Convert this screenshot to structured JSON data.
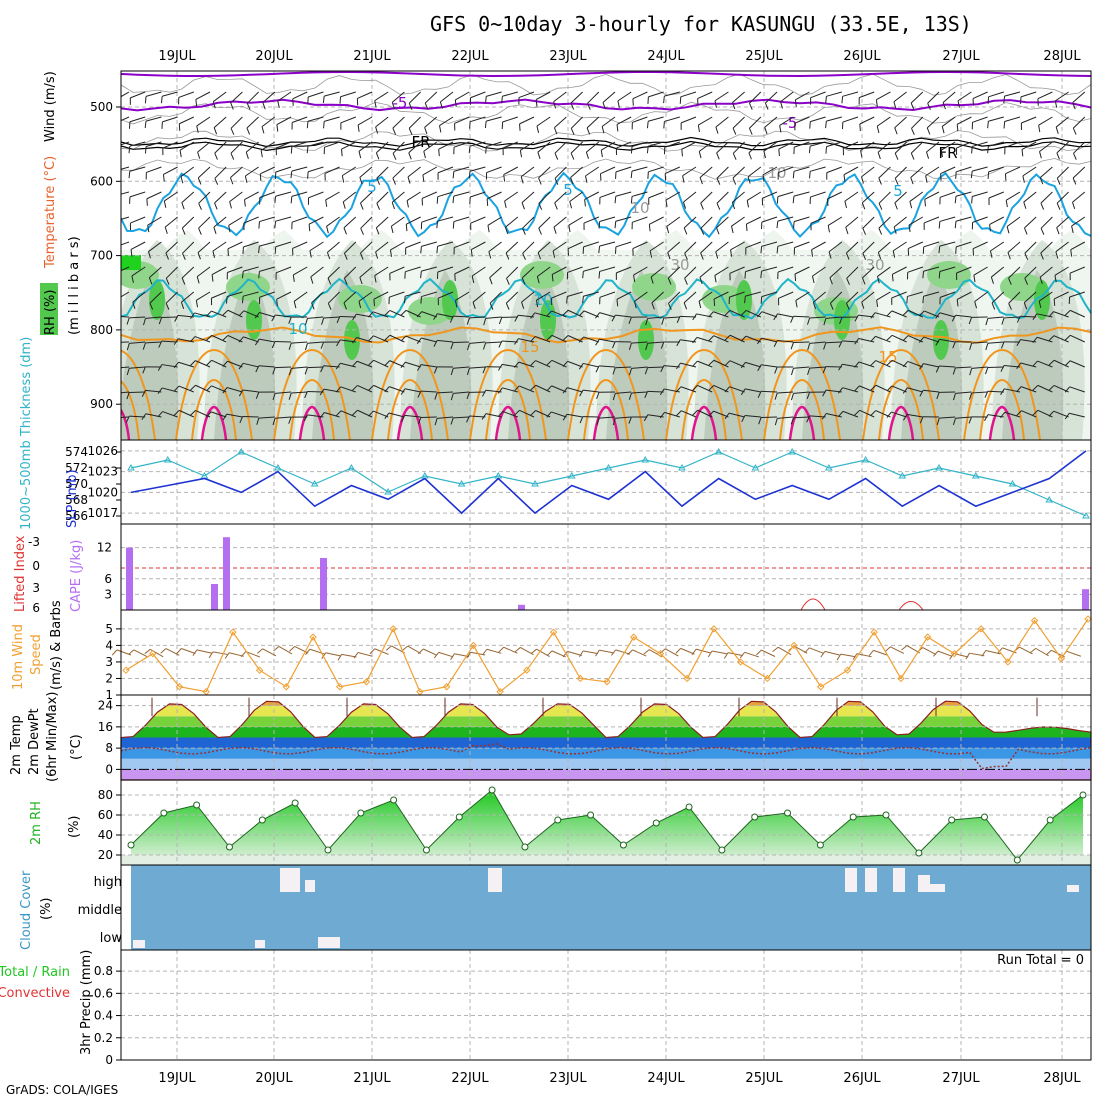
{
  "title": "GFS 0~10day 3-hourly for KASUNGU (33.5E, 13S)",
  "credit": "GrADS: COLA/IGES",
  "dates": [
    "19JUL",
    "20JUL",
    "21JUL",
    "22JUL",
    "23JUL",
    "24JUL",
    "25JUL",
    "26JUL",
    "27JUL",
    "28JUL"
  ],
  "colors": {
    "rh": "#52c84e",
    "temp_cold": "#8b00c8",
    "temp_cool": "#1aa3e0",
    "temp_warm": "#f0961e",
    "temp_hot": "#e0148c",
    "slp": "#1e32d2",
    "thickness": "#32b4c8",
    "cape": "#b46ef0",
    "wind_speed": "#f0a032",
    "wind_barb": "#966432",
    "cloud": "#6eaad2",
    "rh2m": "#22c822"
  },
  "panel_upper": {
    "label_rh": "RH (%)",
    "label_temp": "Temperature (°C)",
    "label_wind": "Wind (m/s)",
    "ylabel": "(m i l l i b a r s)",
    "yticks": [
      "500",
      "600",
      "700",
      "800",
      "900"
    ],
    "contour_labels": [
      "-5",
      "-5",
      "FR",
      "FR",
      "5",
      "5",
      "5",
      "10",
      "10",
      "15",
      "15",
      "10",
      "30",
      "30",
      "10"
    ]
  },
  "panel_slp": {
    "label_thick": "1000~500mb Thickness (dm)",
    "label_slp": "SLP (mb)",
    "left_ticks": [
      "574",
      "572",
      "570",
      "568",
      "566"
    ],
    "right_ticks": [
      "1026",
      "1023",
      "1020",
      "1017"
    ]
  },
  "panel_cape": {
    "label_li": "Lifted Index",
    "label_cape": "CAPE (J/kg)",
    "left_ticks": [
      "-3",
      "0",
      "3",
      "6"
    ],
    "right_ticks": [
      "12",
      "6",
      "3"
    ]
  },
  "panel_wind": {
    "label1": "10m Wind",
    "label2": "Speed",
    "label3": "(m/s) & Barbs",
    "yticks": [
      "5",
      "4",
      "3",
      "2",
      "1"
    ]
  },
  "panel_temp": {
    "label1": "2m Temp",
    "label2": "2m DewPt",
    "label3": "(6hr Min/Max)",
    "unit": "(°C)",
    "yticks": [
      "24",
      "16",
      "8",
      "0"
    ]
  },
  "panel_rh2m": {
    "label": "2m RH",
    "unit": "(%)",
    "yticks": [
      "80",
      "60",
      "40",
      "20"
    ]
  },
  "panel_cloud": {
    "label": "Cloud Cover",
    "unit": "(%)",
    "levels": [
      "high",
      "middle",
      "low"
    ]
  },
  "panel_precip": {
    "label_total": "Total / Rain",
    "label_conv": "Convective",
    "ylabel": "3hr Precip (mm)",
    "run_total": "Run Total = 0",
    "yticks": [
      "0.8",
      "0.6",
      "0.4",
      "0.2",
      "0"
    ]
  },
  "chart_data": [
    {
      "type": "line",
      "title": "2m Temp",
      "ylabel": "°C",
      "ylim": [
        -4,
        28
      ],
      "x": [
        "19JUL",
        "20JUL",
        "21JUL",
        "22JUL",
        "23JUL",
        "24JUL",
        "25JUL",
        "26JUL",
        "27JUL",
        "28JUL"
      ],
      "series": [
        {
          "name": "2m Temp daily max",
          "values": [
            25,
            26,
            25,
            25,
            25,
            25,
            26,
            26,
            26,
            16
          ]
        },
        {
          "name": "2m Temp daily min",
          "values": [
            12,
            12,
            12,
            12,
            13,
            12,
            12,
            12,
            13,
            14
          ]
        },
        {
          "name": "2m DewPt",
          "values": [
            8,
            8,
            7,
            10,
            7,
            7,
            6,
            6,
            5,
            6
          ]
        }
      ]
    },
    {
      "type": "line",
      "title": "SLP (mb)",
      "ylim": [
        1016,
        1027
      ],
      "series": [
        {
          "name": "SLP",
          "values": [
            1020,
            1021,
            1022,
            1020,
            1023,
            1018,
            1021,
            1019,
            1022,
            1017,
            1022,
            1017,
            1021,
            1019,
            1023,
            1018,
            1022,
            1019,
            1021,
            1019,
            1022,
            1018,
            1021,
            1018,
            1020,
            1022,
            1026
          ]
        },
        {
          "name": "Thickness",
          "values": [
            572,
            573,
            571,
            574,
            572,
            570,
            572,
            569,
            571,
            570,
            571,
            570,
            571,
            572,
            573,
            572,
            574,
            572,
            574,
            572,
            573,
            571,
            572,
            571,
            570,
            568,
            566
          ]
        }
      ]
    },
    {
      "type": "line",
      "title": "2m RH",
      "ylabel": "%",
      "ylim": [
        10,
        90
      ],
      "series": [
        {
          "name": "2m RH",
          "values": [
            30,
            62,
            70,
            28,
            55,
            72,
            25,
            62,
            75,
            25,
            58,
            85,
            28,
            55,
            60,
            30,
            52,
            68,
            25,
            58,
            62,
            30,
            58,
            60,
            22,
            55,
            58,
            15,
            55,
            80
          ]
        }
      ]
    },
    {
      "type": "line",
      "title": "10m Wind Speed (m/s)",
      "ylim": [
        1,
        5.8
      ],
      "series": [
        {
          "name": "Wind speed",
          "values": [
            2.5,
            3.5,
            1.5,
            1.2,
            4.8,
            2.5,
            1.5,
            4.5,
            1.5,
            1.8,
            5.0,
            1.2,
            1.5,
            4.0,
            1.2,
            2.5,
            4.8,
            2.0,
            1.8,
            4.5,
            3.5,
            2.0,
            5.0,
            3.0,
            2.0,
            4.0,
            1.5,
            2.5,
            4.8,
            2.0,
            4.5,
            3.5,
            5.0,
            3.0,
            5.5,
            3.2,
            5.6
          ]
        }
      ]
    },
    {
      "type": "bar",
      "title": "CAPE (J/kg)",
      "x": [
        "18JUL18",
        "19JUL09",
        "19JUL12",
        "20JUL12",
        "22JUL12",
        "28JUL06"
      ],
      "values": [
        12,
        5,
        14,
        10,
        1,
        4
      ],
      "ylim": [
        0,
        15
      ]
    }
  ]
}
